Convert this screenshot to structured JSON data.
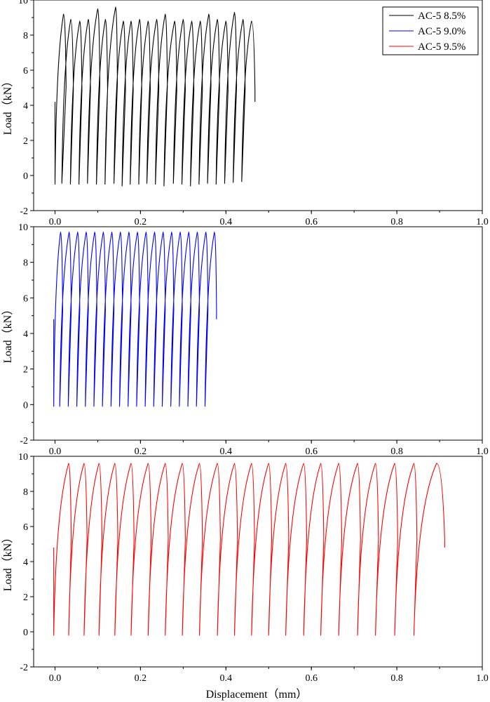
{
  "figure": {
    "xlabel": "Displacement（mm）",
    "legend": {
      "placement": "top-right",
      "entries": [
        {
          "label": "AC-5 8.5%",
          "color": "#000000"
        },
        {
          "label": "AC-5 9.0%",
          "color": "#0000ff"
        },
        {
          "label": "AC-5 9.5%",
          "color": "#ff0000"
        }
      ]
    }
  },
  "chart_data": [
    {
      "type": "line",
      "ylabel": "Load（kN）",
      "xlim": [
        -0.05,
        1.0
      ],
      "ylim": [
        -2,
        10
      ],
      "x_ticks": [
        "0.0",
        "0.2",
        "0.4",
        "0.6",
        "0.8",
        "1.0"
      ],
      "y_ticks": [
        "-2",
        "0",
        "2",
        "4",
        "6",
        "8",
        "10"
      ],
      "grid": false,
      "series": [
        {
          "name": "AC-5 8.5%",
          "color": "#000000",
          "start": [
            0.0,
            4.2
          ],
          "cycles": [
            {
              "x0": 0.0,
              "ymin": -0.5,
              "xp": 0.02,
              "yp": 9.2,
              "x1": 0.026
            },
            {
              "x0": 0.016,
              "ymin": -0.45,
              "xp": 0.037,
              "yp": 8.9,
              "x1": 0.043
            },
            {
              "x0": 0.036,
              "ymin": -0.5,
              "xp": 0.058,
              "yp": 8.8,
              "x1": 0.063
            },
            {
              "x0": 0.056,
              "ymin": -0.5,
              "xp": 0.078,
              "yp": 8.9,
              "x1": 0.083
            },
            {
              "x0": 0.076,
              "ymin": -0.45,
              "xp": 0.1,
              "yp": 9.5,
              "x1": 0.105
            },
            {
              "x0": 0.097,
              "ymin": -0.5,
              "xp": 0.118,
              "yp": 8.9,
              "x1": 0.123
            },
            {
              "x0": 0.117,
              "ymin": -0.5,
              "xp": 0.142,
              "yp": 9.6,
              "x1": 0.146
            },
            {
              "x0": 0.138,
              "ymin": -0.45,
              "xp": 0.16,
              "yp": 8.8,
              "x1": 0.165
            },
            {
              "x0": 0.157,
              "ymin": -0.6,
              "xp": 0.178,
              "yp": 8.8,
              "x1": 0.183
            },
            {
              "x0": 0.176,
              "ymin": -0.5,
              "xp": 0.198,
              "yp": 8.9,
              "x1": 0.203
            },
            {
              "x0": 0.196,
              "ymin": -0.5,
              "xp": 0.218,
              "yp": 8.8,
              "x1": 0.223
            },
            {
              "x0": 0.215,
              "ymin": -0.45,
              "xp": 0.238,
              "yp": 8.9,
              "x1": 0.243
            },
            {
              "x0": 0.235,
              "ymin": -0.5,
              "xp": 0.258,
              "yp": 9.2,
              "x1": 0.263
            },
            {
              "x0": 0.255,
              "ymin": -0.6,
              "xp": 0.28,
              "yp": 8.8,
              "x1": 0.285
            },
            {
              "x0": 0.277,
              "ymin": -0.45,
              "xp": 0.3,
              "yp": 8.9,
              "x1": 0.305
            },
            {
              "x0": 0.297,
              "ymin": -0.5,
              "xp": 0.32,
              "yp": 8.8,
              "x1": 0.325
            },
            {
              "x0": 0.317,
              "ymin": -0.6,
              "xp": 0.34,
              "yp": 8.8,
              "x1": 0.345
            },
            {
              "x0": 0.337,
              "ymin": -0.5,
              "xp": 0.36,
              "yp": 9.2,
              "x1": 0.365
            },
            {
              "x0": 0.357,
              "ymin": -0.45,
              "xp": 0.38,
              "yp": 8.9,
              "x1": 0.385
            },
            {
              "x0": 0.377,
              "ymin": -0.5,
              "xp": 0.4,
              "yp": 8.8,
              "x1": 0.405
            },
            {
              "x0": 0.397,
              "ymin": -0.45,
              "xp": 0.42,
              "yp": 9.3,
              "x1": 0.425
            },
            {
              "x0": 0.417,
              "ymin": -0.4,
              "xp": 0.44,
              "yp": 8.9,
              "x1": 0.445
            },
            {
              "x0": 0.437,
              "ymin": -0.35,
              "xp": 0.46,
              "yp": 8.8,
              "x1": 0.468
            }
          ],
          "end": [
            0.468,
            4.2
          ]
        }
      ]
    },
    {
      "type": "line",
      "ylabel": "Load（kN）",
      "xlim": [
        -0.05,
        1.0
      ],
      "ylim": [
        -2,
        10
      ],
      "x_ticks": [
        "0.0",
        "0.2",
        "0.4",
        "0.6",
        "0.8",
        "1.0"
      ],
      "y_ticks": [
        "-2",
        "0",
        "2",
        "4",
        "6",
        "8",
        "10"
      ],
      "grid": false,
      "series": [
        {
          "name": "AC-5 9.0%",
          "color": "#0000ff",
          "start": [
            -0.003,
            4.8
          ],
          "cycles": [
            {
              "x0": -0.003,
              "ymin": -0.1,
              "xp": 0.013,
              "yp": 9.7,
              "x1": 0.018
            },
            {
              "x0": 0.011,
              "ymin": -0.1,
              "xp": 0.033,
              "yp": 9.7,
              "x1": 0.038
            },
            {
              "x0": 0.031,
              "ymin": -0.1,
              "xp": 0.053,
              "yp": 9.7,
              "x1": 0.058
            },
            {
              "x0": 0.051,
              "ymin": -0.1,
              "xp": 0.073,
              "yp": 9.7,
              "x1": 0.078
            },
            {
              "x0": 0.071,
              "ymin": -0.1,
              "xp": 0.093,
              "yp": 9.7,
              "x1": 0.098
            },
            {
              "x0": 0.091,
              "ymin": -0.1,
              "xp": 0.113,
              "yp": 9.7,
              "x1": 0.118
            },
            {
              "x0": 0.111,
              "ymin": -0.1,
              "xp": 0.133,
              "yp": 9.7,
              "x1": 0.138
            },
            {
              "x0": 0.131,
              "ymin": -0.1,
              "xp": 0.153,
              "yp": 9.7,
              "x1": 0.158
            },
            {
              "x0": 0.151,
              "ymin": -0.1,
              "xp": 0.173,
              "yp": 9.7,
              "x1": 0.178
            },
            {
              "x0": 0.171,
              "ymin": -0.1,
              "xp": 0.193,
              "yp": 9.7,
              "x1": 0.198
            },
            {
              "x0": 0.191,
              "ymin": -0.1,
              "xp": 0.213,
              "yp": 9.7,
              "x1": 0.218
            },
            {
              "x0": 0.211,
              "ymin": -0.1,
              "xp": 0.233,
              "yp": 9.7,
              "x1": 0.238
            },
            {
              "x0": 0.231,
              "ymin": -0.1,
              "xp": 0.253,
              "yp": 9.7,
              "x1": 0.258
            },
            {
              "x0": 0.251,
              "ymin": -0.1,
              "xp": 0.273,
              "yp": 9.7,
              "x1": 0.278
            },
            {
              "x0": 0.271,
              "ymin": -0.1,
              "xp": 0.293,
              "yp": 9.7,
              "x1": 0.298
            },
            {
              "x0": 0.291,
              "ymin": -0.1,
              "xp": 0.313,
              "yp": 9.7,
              "x1": 0.318
            },
            {
              "x0": 0.311,
              "ymin": -0.1,
              "xp": 0.333,
              "yp": 9.7,
              "x1": 0.338
            },
            {
              "x0": 0.331,
              "ymin": -0.1,
              "xp": 0.353,
              "yp": 9.7,
              "x1": 0.358
            },
            {
              "x0": 0.351,
              "ymin": -0.1,
              "xp": 0.373,
              "yp": 9.7,
              "x1": 0.378
            }
          ],
          "end": [
            0.378,
            4.8
          ]
        }
      ]
    },
    {
      "type": "line",
      "ylabel": "Load（kN）",
      "xlim": [
        -0.05,
        1.0
      ],
      "ylim": [
        -2,
        10
      ],
      "x_ticks": [
        "0.0",
        "0.2",
        "0.4",
        "0.6",
        "0.8",
        "1.0"
      ],
      "y_ticks": [
        "-2",
        "0",
        "2",
        "4",
        "6",
        "8",
        "10"
      ],
      "grid": false,
      "series": [
        {
          "name": "AC-5 9.5%",
          "color": "#ff0000",
          "start": [
            -0.003,
            4.8
          ],
          "cycles": [
            {
              "x0": -0.003,
              "ymin": -0.2,
              "xp": 0.032,
              "yp": 9.6,
              "x1": 0.038
            },
            {
              "x0": 0.032,
              "ymin": -0.2,
              "xp": 0.068,
              "yp": 9.6,
              "x1": 0.075
            },
            {
              "x0": 0.068,
              "ymin": -0.2,
              "xp": 0.103,
              "yp": 9.6,
              "x1": 0.11
            },
            {
              "x0": 0.103,
              "ymin": -0.2,
              "xp": 0.14,
              "yp": 9.6,
              "x1": 0.147
            },
            {
              "x0": 0.14,
              "ymin": -0.2,
              "xp": 0.178,
              "yp": 9.6,
              "x1": 0.185
            },
            {
              "x0": 0.178,
              "ymin": -0.2,
              "xp": 0.218,
              "yp": 9.6,
              "x1": 0.225
            },
            {
              "x0": 0.218,
              "ymin": -0.2,
              "xp": 0.258,
              "yp": 9.6,
              "x1": 0.265
            },
            {
              "x0": 0.258,
              "ymin": -0.2,
              "xp": 0.298,
              "yp": 9.6,
              "x1": 0.305
            },
            {
              "x0": 0.298,
              "ymin": -0.2,
              "xp": 0.338,
              "yp": 9.6,
              "x1": 0.345
            },
            {
              "x0": 0.338,
              "ymin": -0.2,
              "xp": 0.38,
              "yp": 9.6,
              "x1": 0.387
            },
            {
              "x0": 0.38,
              "ymin": -0.2,
              "xp": 0.42,
              "yp": 9.6,
              "x1": 0.427
            },
            {
              "x0": 0.42,
              "ymin": -0.2,
              "xp": 0.46,
              "yp": 9.6,
              "x1": 0.467
            },
            {
              "x0": 0.46,
              "ymin": -0.2,
              "xp": 0.5,
              "yp": 9.6,
              "x1": 0.507
            },
            {
              "x0": 0.5,
              "ymin": -0.2,
              "xp": 0.54,
              "yp": 9.6,
              "x1": 0.547
            },
            {
              "x0": 0.54,
              "ymin": -0.2,
              "xp": 0.582,
              "yp": 9.6,
              "x1": 0.589
            },
            {
              "x0": 0.582,
              "ymin": -0.2,
              "xp": 0.622,
              "yp": 9.6,
              "x1": 0.629
            },
            {
              "x0": 0.622,
              "ymin": -0.2,
              "xp": 0.664,
              "yp": 9.6,
              "x1": 0.671
            },
            {
              "x0": 0.664,
              "ymin": -0.2,
              "xp": 0.708,
              "yp": 9.6,
              "x1": 0.715
            },
            {
              "x0": 0.708,
              "ymin": -0.2,
              "xp": 0.75,
              "yp": 9.6,
              "x1": 0.757
            },
            {
              "x0": 0.75,
              "ymin": -0.2,
              "xp": 0.795,
              "yp": 9.6,
              "x1": 0.802
            },
            {
              "x0": 0.795,
              "ymin": -0.2,
              "xp": 0.84,
              "yp": 9.6,
              "x1": 0.847
            },
            {
              "x0": 0.84,
              "ymin": -0.2,
              "xp": 0.893,
              "yp": 9.6,
              "x1": 0.912
            }
          ],
          "end": [
            0.912,
            4.8
          ]
        }
      ]
    }
  ]
}
